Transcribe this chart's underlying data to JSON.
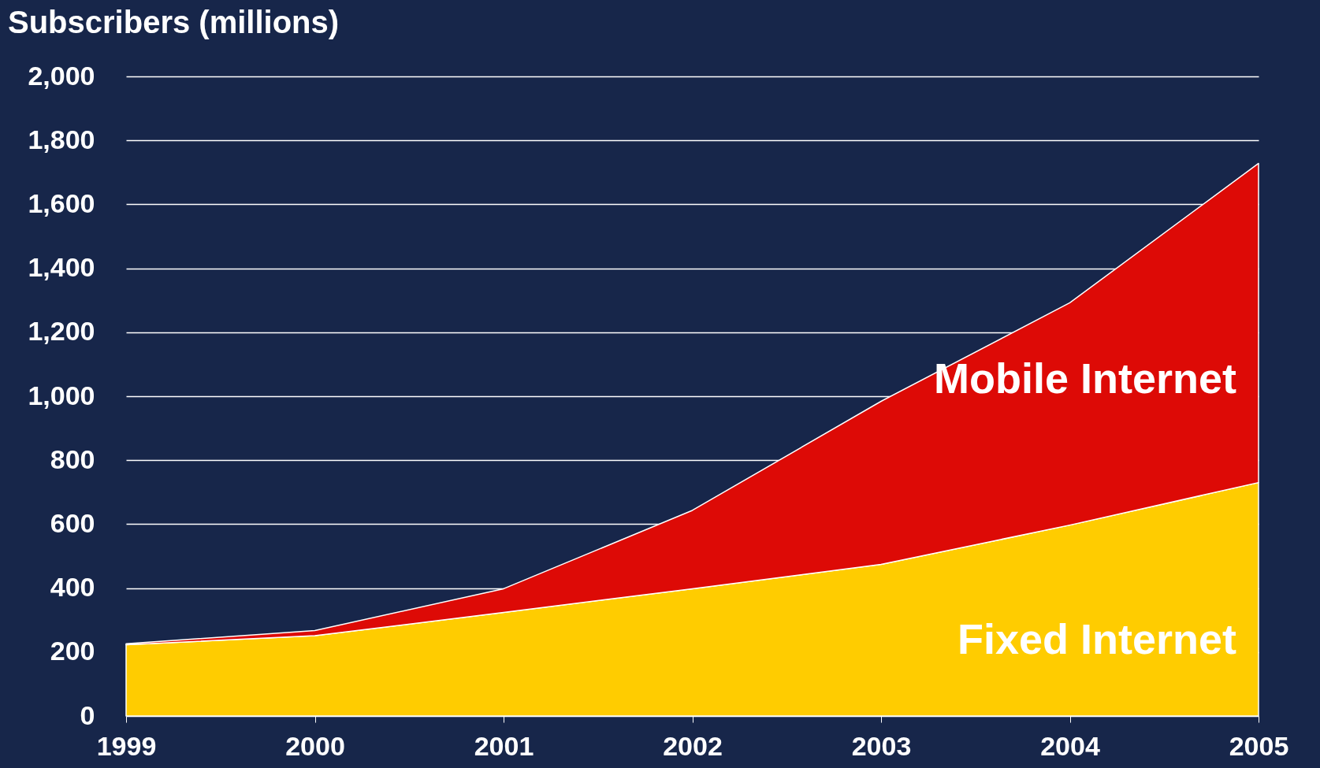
{
  "chart_data": {
    "type": "area",
    "stacked": true,
    "ylabel": "Subscribers (millions)",
    "categories": [
      "1999",
      "2000",
      "2001",
      "2002",
      "2003",
      "2004",
      "2005"
    ],
    "series": [
      {
        "name": "Fixed Internet",
        "color": "#ffcc00",
        "values": [
          223,
          251,
          324,
          398,
          474,
          597,
          730
        ]
      },
      {
        "name": "Mobile Internet",
        "color": "#dd0a06",
        "values": [
          3,
          16,
          74,
          245,
          510,
          695,
          998
        ]
      }
    ],
    "ylim": [
      0,
      2000
    ],
    "yticks": [
      0,
      200,
      400,
      600,
      800,
      {
        "value": 1000,
        "label": "1,000"
      },
      {
        "value": 1200,
        "label": "1,200"
      },
      {
        "value": 1400,
        "label": "1,400"
      },
      {
        "value": 1600,
        "label": "1,600"
      },
      {
        "value": 1800,
        "label": "1,800"
      },
      {
        "value": 2000,
        "label": "2,000"
      }
    ],
    "grid": "y"
  }
}
